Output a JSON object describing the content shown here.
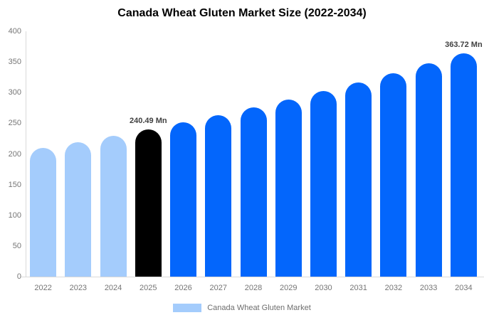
{
  "chart_data": {
    "type": "bar",
    "title": "Canada Wheat Gluten Market Size (2022-2034)",
    "xlabel": "",
    "ylabel": "",
    "ylim": [
      0,
      400
    ],
    "yticks": [
      0,
      50,
      100,
      150,
      200,
      250,
      300,
      350,
      400
    ],
    "grid": false,
    "legend_position": "bottom",
    "value_unit": "Mn",
    "categories": [
      "2022",
      "2023",
      "2024",
      "2025",
      "2026",
      "2027",
      "2028",
      "2029",
      "2030",
      "2031",
      "2032",
      "2033",
      "2034"
    ],
    "series": [
      {
        "name": "Canada Wheat Gluten Market",
        "values": [
          209.5,
          219.4,
          229.7,
          240.49,
          251.8,
          263.7,
          276.1,
          289.0,
          302.6,
          316.9,
          331.8,
          347.4,
          363.72
        ]
      }
    ],
    "segments": [
      "historical",
      "historical",
      "historical",
      "base_year",
      "forecast",
      "forecast",
      "forecast",
      "forecast",
      "forecast",
      "forecast",
      "forecast",
      "forecast",
      "forecast"
    ],
    "segment_colors": {
      "historical": "#a4ccfc",
      "base_year": "#000000",
      "forecast": "#0366fc"
    },
    "annotations": [
      {
        "category": "2025",
        "text": "240.49 Mn"
      },
      {
        "category": "2034",
        "text": "363.72 Mn"
      }
    ]
  },
  "legend": {
    "swatch_color": "#a4ccfc"
  },
  "style_colors": {
    "title_text": "#000000",
    "tick_text": "#757575",
    "annotation_text": "#404040",
    "legend_text": "#6e6e6e",
    "axis_line": "#d9d9d9"
  }
}
